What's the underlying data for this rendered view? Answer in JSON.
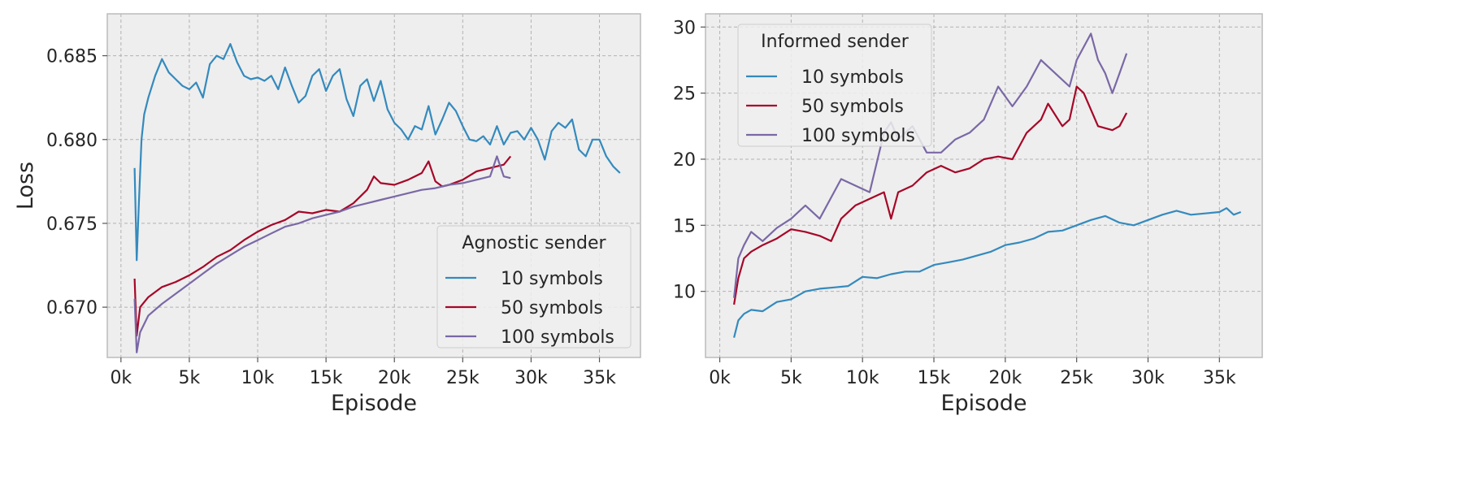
{
  "colors": {
    "10 symbols": "#348ABD",
    "50 symbols": "#A60628",
    "100 symbols": "#7A68A6",
    "plot_background": "#EEEEEE",
    "grid": "#B2B2B2"
  },
  "chart_data": [
    {
      "type": "line",
      "title": "",
      "xlabel": "Episode",
      "ylabel": "Loss",
      "xlim": [
        -1000,
        38000
      ],
      "ylim": [
        0.667,
        0.6875
      ],
      "x_ticks": [
        0,
        5000,
        10000,
        15000,
        20000,
        25000,
        30000,
        35000
      ],
      "x_tick_labels": [
        "0k",
        "5k",
        "10k",
        "15k",
        "20k",
        "25k",
        "30k",
        "35k"
      ],
      "y_ticks": [
        0.67,
        0.675,
        0.68,
        0.685
      ],
      "y_tick_labels": [
        "0.670",
        "0.675",
        "0.680",
        "0.685"
      ],
      "grid": true,
      "legend": {
        "title": "Agnostic sender",
        "placement": "lower-right"
      },
      "series": [
        {
          "name": "10 symbols",
          "x": [
            1000,
            1150,
            1300,
            1500,
            1700,
            2000,
            2500,
            3000,
            3500,
            4000,
            4500,
            5000,
            5500,
            6000,
            6500,
            7000,
            7500,
            8000,
            8500,
            9000,
            9500,
            10000,
            10500,
            11000,
            11500,
            12000,
            12500,
            13000,
            13500,
            14000,
            14500,
            15000,
            15500,
            16000,
            16500,
            17000,
            17500,
            18000,
            18500,
            19000,
            19500,
            20000,
            20500,
            21000,
            21500,
            22000,
            22500,
            23000,
            23500,
            24000,
            24500,
            25000,
            25500,
            26000,
            26500,
            27000,
            27500,
            28000,
            28500,
            29000,
            29500,
            30000,
            30500,
            31000,
            31500,
            32000,
            32500,
            33000,
            33500,
            34000,
            34500,
            35000,
            35500,
            36000,
            36500
          ],
          "values": [
            0.6783,
            0.6728,
            0.676,
            0.68,
            0.6815,
            0.6825,
            0.6838,
            0.6848,
            0.684,
            0.6836,
            0.6832,
            0.683,
            0.6834,
            0.6825,
            0.6845,
            0.685,
            0.6848,
            0.6857,
            0.6846,
            0.6838,
            0.6836,
            0.6837,
            0.6835,
            0.6838,
            0.683,
            0.6843,
            0.6832,
            0.6822,
            0.6826,
            0.6838,
            0.6842,
            0.6829,
            0.6838,
            0.6842,
            0.6824,
            0.6814,
            0.6832,
            0.6836,
            0.6823,
            0.6835,
            0.6818,
            0.681,
            0.6806,
            0.68,
            0.6808,
            0.6806,
            0.682,
            0.6803,
            0.6812,
            0.6822,
            0.6817,
            0.6808,
            0.68,
            0.6799,
            0.6802,
            0.6797,
            0.6808,
            0.6797,
            0.6804,
            0.6805,
            0.68,
            0.6807,
            0.68,
            0.6788,
            0.6805,
            0.681,
            0.6807,
            0.6812,
            0.6794,
            0.679,
            0.68,
            0.68,
            0.679,
            0.6784,
            0.678
          ]
        },
        {
          "name": "50 symbols",
          "x": [
            1000,
            1150,
            1400,
            2000,
            3000,
            4000,
            5000,
            6000,
            7000,
            8000,
            9000,
            10000,
            11000,
            12000,
            13000,
            14000,
            15000,
            16000,
            17000,
            18000,
            18500,
            19000,
            20000,
            21000,
            22000,
            22500,
            23000,
            23500,
            24000,
            25000,
            26000,
            27000,
            28000,
            28500
          ],
          "values": [
            0.6717,
            0.6683,
            0.67,
            0.6706,
            0.6712,
            0.6715,
            0.6719,
            0.6724,
            0.673,
            0.6734,
            0.674,
            0.6745,
            0.6749,
            0.6752,
            0.6757,
            0.6756,
            0.6758,
            0.6757,
            0.6762,
            0.677,
            0.6778,
            0.6774,
            0.6773,
            0.6776,
            0.678,
            0.6787,
            0.6775,
            0.6772,
            0.6773,
            0.6776,
            0.6781,
            0.6783,
            0.6785,
            0.679
          ]
        },
        {
          "name": "100 symbols",
          "x": [
            1000,
            1150,
            1400,
            2000,
            3000,
            4000,
            5000,
            6000,
            7000,
            8000,
            9000,
            10000,
            11000,
            12000,
            13000,
            14000,
            15000,
            16000,
            17000,
            18000,
            19000,
            20000,
            21000,
            22000,
            23000,
            24000,
            25000,
            26000,
            27000,
            27500,
            28000,
            28500
          ],
          "values": [
            0.6705,
            0.6673,
            0.6685,
            0.6695,
            0.6702,
            0.6708,
            0.6714,
            0.672,
            0.6726,
            0.6731,
            0.6736,
            0.674,
            0.6744,
            0.6748,
            0.675,
            0.6753,
            0.6755,
            0.6757,
            0.676,
            0.6762,
            0.6764,
            0.6766,
            0.6768,
            0.677,
            0.6771,
            0.6773,
            0.6774,
            0.6776,
            0.6778,
            0.679,
            0.6778,
            0.6777
          ]
        }
      ]
    },
    {
      "type": "line",
      "title": "",
      "xlabel": "Episode",
      "ylabel": "",
      "xlim": [
        -1000,
        38000
      ],
      "ylim": [
        5,
        31
      ],
      "x_ticks": [
        0,
        5000,
        10000,
        15000,
        20000,
        25000,
        30000,
        35000
      ],
      "x_tick_labels": [
        "0k",
        "5k",
        "10k",
        "15k",
        "20k",
        "25k",
        "30k",
        "35k"
      ],
      "y_ticks": [
        10,
        15,
        20,
        25,
        30
      ],
      "y_tick_labels": [
        "10",
        "15",
        "20",
        "25",
        "30"
      ],
      "grid": true,
      "legend": {
        "title": "Informed sender",
        "placement": "upper-left"
      },
      "series": [
        {
          "name": "10 symbols",
          "x": [
            1000,
            1300,
            1700,
            2200,
            3000,
            4000,
            5000,
            6000,
            7000,
            8000,
            9000,
            10000,
            11000,
            12000,
            13000,
            14000,
            15000,
            16000,
            17000,
            18000,
            19000,
            20000,
            21000,
            22000,
            23000,
            24000,
            25000,
            26000,
            27000,
            28000,
            29000,
            30000,
            31000,
            32000,
            33000,
            34000,
            35000,
            35500,
            36000,
            36500
          ],
          "values": [
            6.5,
            7.8,
            8.3,
            8.6,
            8.5,
            9.2,
            9.4,
            10.0,
            10.2,
            10.3,
            10.4,
            11.1,
            11.0,
            11.3,
            11.5,
            11.5,
            12.0,
            12.2,
            12.4,
            12.7,
            13.0,
            13.5,
            13.7,
            14.0,
            14.5,
            14.6,
            15.0,
            15.4,
            15.7,
            15.2,
            15.0,
            15.4,
            15.8,
            16.1,
            15.8,
            15.9,
            16.0,
            16.3,
            15.8,
            16.0
          ]
        },
        {
          "name": "50 symbols",
          "x": [
            1000,
            1300,
            1700,
            2200,
            3000,
            4000,
            5000,
            6000,
            7000,
            7800,
            8500,
            9500,
            10500,
            11500,
            12000,
            12500,
            13500,
            14500,
            15500,
            16500,
            17500,
            18500,
            19500,
            20500,
            21500,
            22500,
            23000,
            24000,
            24500,
            25000,
            25500,
            26500,
            27500,
            28000,
            28500
          ],
          "values": [
            9.0,
            11.0,
            12.5,
            13.0,
            13.5,
            14.0,
            14.7,
            14.5,
            14.2,
            13.8,
            15.5,
            16.5,
            17.0,
            17.5,
            15.5,
            17.5,
            18.0,
            19.0,
            19.5,
            19.0,
            19.3,
            20.0,
            20.2,
            20.0,
            22.0,
            23.0,
            24.2,
            22.5,
            23.0,
            25.5,
            25.0,
            22.5,
            22.2,
            22.5,
            23.5
          ]
        },
        {
          "name": "100 symbols",
          "x": [
            1000,
            1300,
            1700,
            2200,
            3000,
            4000,
            5000,
            6000,
            7000,
            8000,
            8500,
            9500,
            10500,
            11500,
            12000,
            12500,
            13500,
            14500,
            15500,
            16500,
            17500,
            18500,
            19500,
            20500,
            21500,
            22500,
            23500,
            24500,
            25000,
            26000,
            26500,
            27000,
            27500,
            28000,
            28500
          ],
          "values": [
            9.5,
            12.5,
            13.5,
            14.5,
            13.8,
            14.8,
            15.5,
            16.5,
            15.5,
            17.5,
            18.5,
            18.0,
            17.5,
            22.0,
            22.8,
            21.5,
            22.5,
            20.5,
            20.5,
            21.5,
            22.0,
            23.0,
            25.5,
            24.0,
            25.5,
            27.5,
            26.5,
            25.5,
            27.5,
            29.5,
            27.5,
            26.5,
            25.0,
            26.5,
            28.0
          ]
        }
      ]
    }
  ]
}
